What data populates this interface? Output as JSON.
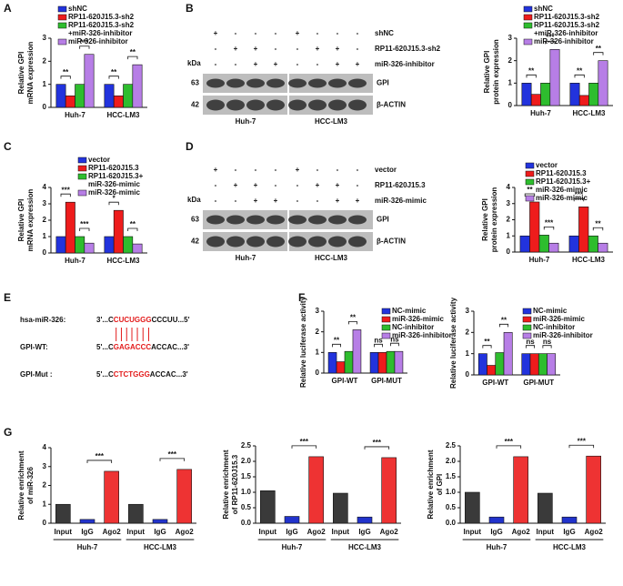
{
  "panel_labels": [
    "A",
    "B",
    "C",
    "D",
    "E",
    "F",
    "G"
  ],
  "chart_data": [
    {
      "type": "grouped_bar",
      "ylabel": [
        "Relative GPI",
        "mRNA expression"
      ],
      "categories": [
        "Huh-7",
        "HCC-LM3"
      ],
      "ylim": [
        0,
        3
      ],
      "yticks": [
        0,
        1,
        2,
        3
      ],
      "series": [
        {
          "name": "shNC",
          "color": "#2233dd",
          "values": [
            1.0,
            1.0
          ]
        },
        {
          "name": "RP11-620J15.3-sh2",
          "color": "#ee1c1c",
          "values": [
            0.5,
            0.5
          ]
        },
        {
          "name": "RP11-620J15.3-sh2\n+miR-326-inhibitor",
          "color": "#2ebd2e",
          "values": [
            1.0,
            1.0
          ]
        },
        {
          "name": "miR-326-inhibitor",
          "color": "#b77ee6",
          "values": [
            2.3,
            1.85
          ]
        }
      ],
      "annotations": [
        "**",
        "***",
        "**",
        "**"
      ]
    },
    {
      "type": "grouped_bar",
      "ylabel": [
        "Relative GPI",
        "protein expression"
      ],
      "categories": [
        "Huh-7",
        "HCC-LM3"
      ],
      "ylim": [
        0,
        3
      ],
      "yticks": [
        0,
        1,
        2,
        3
      ],
      "series": [
        {
          "name": "shNC",
          "color": "#2233dd",
          "values": [
            1.0,
            1.0
          ]
        },
        {
          "name": "RP11-620J15.3-sh2",
          "color": "#ee1c1c",
          "values": [
            0.5,
            0.45
          ]
        },
        {
          "name": "RP11-620J15.3-sh2\n+miR-326-inhibitor",
          "color": "#2ebd2e",
          "values": [
            1.0,
            1.0
          ]
        },
        {
          "name": "miR-326-inhibitor",
          "color": "#b77ee6",
          "values": [
            2.5,
            2.0
          ]
        }
      ],
      "annotations": [
        "**",
        "***",
        "**",
        "**"
      ]
    },
    {
      "type": "grouped_bar",
      "ylabel": [
        "Relative GPI",
        "mRNA expression"
      ],
      "categories": [
        "Huh-7",
        "HCC-LM3"
      ],
      "ylim": [
        0,
        4
      ],
      "yticks": [
        0,
        1,
        2,
        3,
        4
      ],
      "series": [
        {
          "name": "vector",
          "color": "#2233dd",
          "values": [
            1.0,
            1.0
          ]
        },
        {
          "name": "RP11-620J15.3",
          "color": "#ee1c1c",
          "values": [
            3.1,
            2.6
          ]
        },
        {
          "name": "RP11-620J15.3+\nmiR-326-mimic",
          "color": "#2ebd2e",
          "values": [
            1.0,
            1.0
          ]
        },
        {
          "name": "miR-326-mimic",
          "color": "#b77ee6",
          "values": [
            0.6,
            0.55
          ]
        }
      ],
      "annotations": [
        "***",
        "***",
        "*",
        "**"
      ]
    },
    {
      "type": "grouped_bar",
      "ylabel": [
        "Relative GPI",
        "protein expression"
      ],
      "categories": [
        "Huh-7",
        "HCC-LM3"
      ],
      "ylim": [
        0,
        4
      ],
      "yticks": [
        0,
        1,
        2,
        3,
        4
      ],
      "series": [
        {
          "name": "vector",
          "color": "#2233dd",
          "values": [
            1.0,
            1.0
          ]
        },
        {
          "name": "RP11-620J15.3",
          "color": "#ee1c1c",
          "values": [
            3.1,
            2.8
          ]
        },
        {
          "name": "RP11-620J15.3+\nmiR-326-mimic",
          "color": "#2ebd2e",
          "values": [
            1.05,
            1.0
          ]
        },
        {
          "name": "miR-326-mimic",
          "color": "#b77ee6",
          "values": [
            0.55,
            0.55
          ]
        }
      ],
      "annotations": [
        "**",
        "***",
        "***",
        "**"
      ]
    },
    {
      "type": "grouped_bar",
      "ylabel": [
        "Relative luciferase activity"
      ],
      "categories": [
        "GPI-WT",
        "GPI-MUT"
      ],
      "ylim": [
        0,
        3
      ],
      "yticks": [
        0,
        1,
        2,
        3
      ],
      "series": [
        {
          "name": "NC-mimic",
          "color": "#2233dd",
          "values": [
            1.0,
            1.0
          ]
        },
        {
          "name": "miR-326-mimic",
          "color": "#ee1c1c",
          "values": [
            0.55,
            1.0
          ]
        },
        {
          "name": "NC-inhibitor",
          "color": "#2ebd2e",
          "values": [
            1.05,
            1.05
          ]
        },
        {
          "name": "miR-326-inhibitor",
          "color": "#b77ee6",
          "values": [
            2.1,
            1.05
          ]
        }
      ],
      "annotations": [
        "**",
        "**",
        "ns",
        "ns"
      ]
    },
    {
      "type": "grouped_bar",
      "ylabel": [
        "Relative luciferase activity"
      ],
      "categories": [
        "GPI-WT",
        "GPI-MUT"
      ],
      "ylim": [
        0,
        3
      ],
      "yticks": [
        0,
        1,
        2,
        3
      ],
      "series": [
        {
          "name": "NC-mimic",
          "color": "#2233dd",
          "values": [
            1.0,
            1.0
          ]
        },
        {
          "name": "miR-326-mimic",
          "color": "#ee1c1c",
          "values": [
            0.45,
            1.0
          ]
        },
        {
          "name": "NC-inhibitor",
          "color": "#2ebd2e",
          "values": [
            1.05,
            1.0
          ]
        },
        {
          "name": "miR-326-inhibitor",
          "color": "#b77ee6",
          "values": [
            2.0,
            1.0
          ]
        }
      ],
      "annotations": [
        "**",
        "**",
        "ns",
        "ns"
      ]
    },
    {
      "type": "bar",
      "ylabel": [
        "Relative enrichment",
        "of miR-326"
      ],
      "categories": [
        "Input",
        "IgG",
        "Ago2",
        "Input",
        "IgG",
        "Ago2"
      ],
      "groups": [
        "Huh-7",
        "HCC-LM3"
      ],
      "values": [
        1.0,
        0.2,
        2.75,
        1.0,
        0.2,
        2.85
      ],
      "colors": [
        "#3a3a3a",
        "#2233cc",
        "#ee3333",
        "#3a3a3a",
        "#2233cc",
        "#ee3333"
      ],
      "ylim": [
        0,
        4
      ],
      "yticks": [
        0,
        1,
        2,
        3,
        4
      ],
      "annotations": [
        "***",
        "***"
      ]
    },
    {
      "type": "bar",
      "ylabel": [
        "Relative enrichment",
        "of RP11-620J15.3"
      ],
      "categories": [
        "Input",
        "IgG",
        "Ago2",
        "Input",
        "IgG",
        "Ago2"
      ],
      "groups": [
        "Huh-7",
        "HCC-LM3"
      ],
      "values": [
        1.05,
        0.22,
        2.15,
        0.97,
        0.2,
        2.12
      ],
      "colors": [
        "#3a3a3a",
        "#2233cc",
        "#ee3333",
        "#3a3a3a",
        "#2233cc",
        "#ee3333"
      ],
      "ylim": [
        0,
        2.5
      ],
      "yticks": [
        {
          "value": 0,
          "label": "0.0"
        },
        0.5,
        {
          "value": 1,
          "label": "1.0"
        },
        1.5,
        {
          "value": 2,
          "label": "2.0"
        },
        2.5
      ],
      "annotations": [
        "***",
        "***"
      ]
    },
    {
      "type": "bar",
      "ylabel": [
        "Relative enrichment",
        "of GPI"
      ],
      "categories": [
        "Input",
        "IgG",
        "Ago2",
        "Input",
        "IgG",
        "Ago2"
      ],
      "groups": [
        "Huh-7",
        "HCC-LM3"
      ],
      "values": [
        1.0,
        0.2,
        2.15,
        0.97,
        0.2,
        2.17
      ],
      "colors": [
        "#3a3a3a",
        "#2233cc",
        "#ee3333",
        "#3a3a3a",
        "#2233cc",
        "#ee3333"
      ],
      "ylim": [
        0,
        2.5
      ],
      "yticks": [
        {
          "value": 0,
          "label": "0.0"
        },
        0.5,
        {
          "value": 1,
          "label": "1.0"
        },
        1.5,
        {
          "value": 2,
          "label": "2.0"
        },
        2.5
      ],
      "annotations": [
        "***",
        "***"
      ]
    }
  ],
  "blots": [
    {
      "kda": "kDa",
      "treatments": [
        {
          "label": "shNC",
          "signs": [
            "+",
            "-",
            "-",
            "-",
            "+",
            "-",
            "-",
            "-"
          ]
        },
        {
          "label": "RP11-620J15.3-sh2",
          "signs": [
            "-",
            "+",
            "+",
            "-",
            "-",
            "+",
            "+",
            "-"
          ]
        },
        {
          "label": "miR-326-inhibitor",
          "signs": [
            "-",
            "-",
            "+",
            "+",
            "-",
            "-",
            "+",
            "+"
          ]
        }
      ],
      "bands": [
        {
          "label": "GPI",
          "kda": "63"
        },
        {
          "label": "β-ACTIN",
          "kda": "42"
        }
      ],
      "cells": [
        "Huh-7",
        "HCC-LM3"
      ]
    },
    {
      "kda": "kDa",
      "treatments": [
        {
          "label": "vector",
          "signs": [
            "+",
            "-",
            "-",
            "-",
            "+",
            "-",
            "-",
            "-"
          ]
        },
        {
          "label": "RP11-620J15.3",
          "signs": [
            "-",
            "+",
            "+",
            "-",
            "-",
            "+",
            "+",
            "-"
          ]
        },
        {
          "label": "miR-326-mimic",
          "signs": [
            "-",
            "-",
            "+",
            "+",
            "-",
            "-",
            "+",
            "+"
          ]
        }
      ],
      "bands": [
        {
          "label": "GPI",
          "kda": "63"
        },
        {
          "label": "β-ACTIN",
          "kda": "42"
        }
      ],
      "cells": [
        "Huh-7",
        "HCC-LM3"
      ]
    }
  ],
  "sequences": [
    {
      "label": "hsa-miR-326:",
      "prefix": "3'...C",
      "core": "CUCUGGG",
      "suffix": "CCCUU...5'"
    },
    {
      "label": "GPI-WT:",
      "prefix": "5'...C",
      "core": "GAGACCC",
      "suffix": "ACCAC...3'"
    },
    {
      "label": "GPI-Mut :",
      "prefix": "5'...C",
      "core": "CTCTGGG",
      "suffix": "ACCAC...3'"
    }
  ]
}
